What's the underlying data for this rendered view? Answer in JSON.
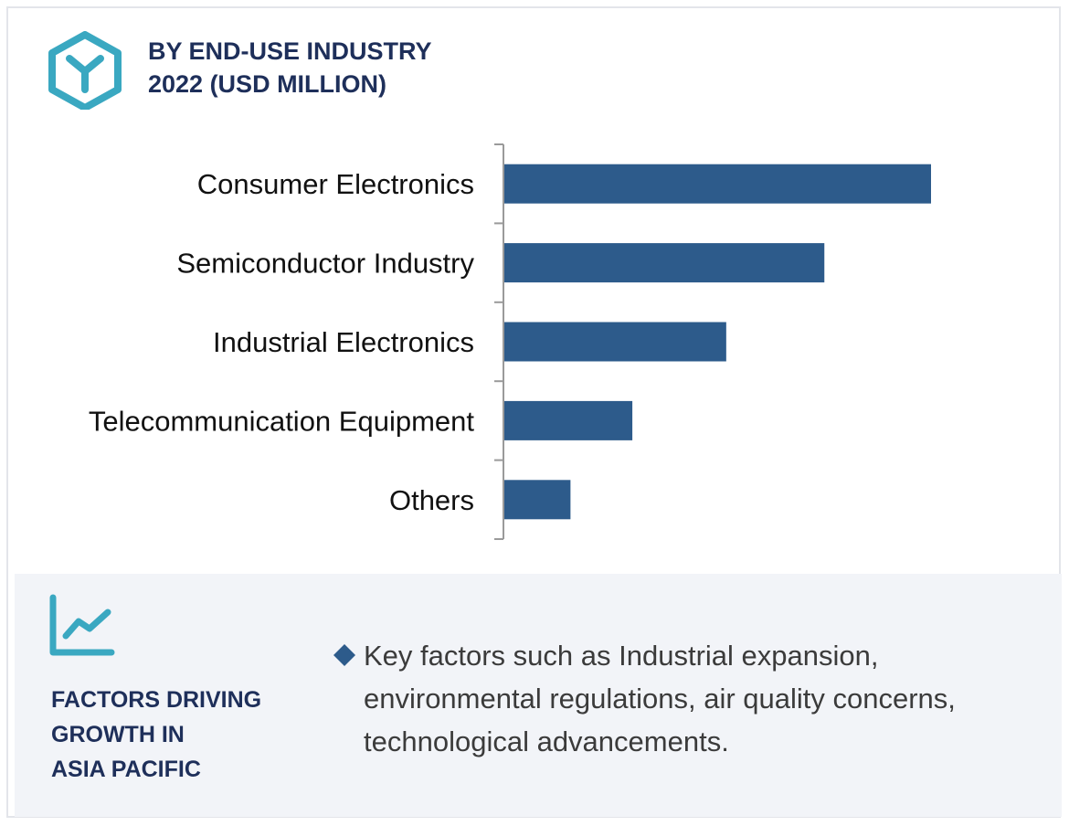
{
  "header": {
    "title_line1": "BY END-USE INDUSTRY",
    "title_line2": "2022 (USD MILLION)",
    "logo_icon": "hexagon-y-logo-icon"
  },
  "colors": {
    "bar": "#2d5b8b",
    "accent": "#3aa8c1",
    "title": "#1e2f5a",
    "panel": "#f2f4f8"
  },
  "chart_data": {
    "type": "bar",
    "orientation": "horizontal",
    "categories": [
      "Consumer Electronics",
      "Semiconductor Industry",
      "Industrial Electronics",
      "Telecommunication Equipment",
      "Others"
    ],
    "values": [
      100,
      75,
      52,
      30,
      15.5
    ],
    "xlim": [
      0,
      100
    ],
    "grid": false,
    "legend": "none"
  },
  "factors": {
    "icon": "trend-line-chart-icon",
    "heading_line1": "FACTORS DRIVING",
    "heading_line2": "GROWTH IN",
    "heading_line3": "ASIA PACIFIC",
    "bullet_icon": "diamond-bullet-icon",
    "text": "Key factors such as Industrial expansion, environmental regulations, air quality concerns, technological advancements."
  }
}
